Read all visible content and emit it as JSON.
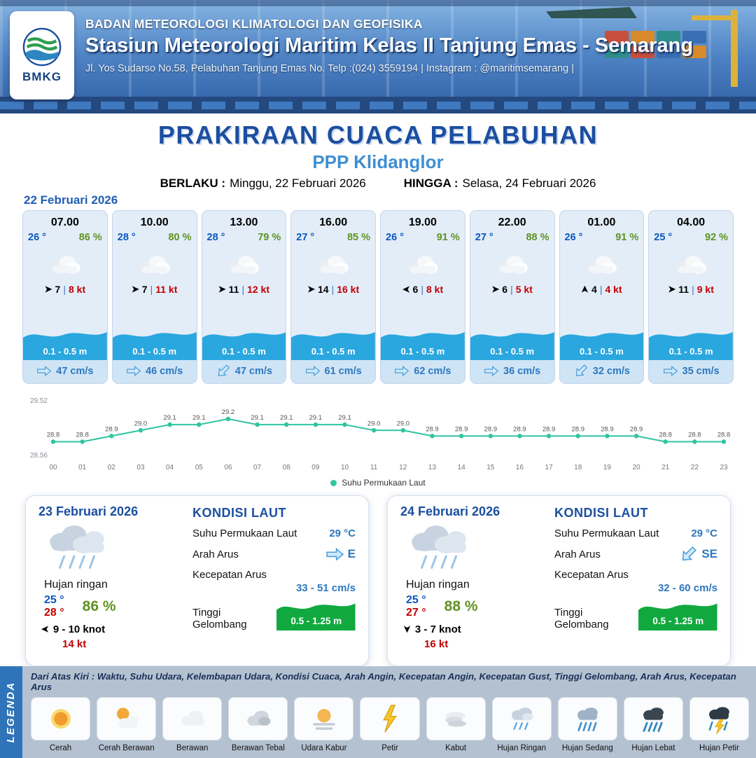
{
  "header": {
    "logo_text": "BMKG",
    "org": "BADAN METEOROLOGI KLIMATOLOGI DAN GEOFISIKA",
    "station": "Stasiun Meteorologi Maritim Kelas II Tanjung Emas - Semarang",
    "address": "Jl. Yos Sudarso No.58, Pelabuhan Tanjung Emas No. Telp :(024) 3559194 | Instagram : @maritimsemarang |"
  },
  "title": {
    "main": "PRAKIRAAN CUACA PELABUHAN",
    "subtitle": "PPP Klidanglor",
    "berlaku_label": "BERLAKU :",
    "berlaku_value": "Minggu, 22 Februari 2026",
    "hingga_label": "HINGGA :",
    "hingga_value": "Selasa, 24 Februari 2026"
  },
  "forecast": {
    "date": "22 Februari 2026",
    "cards": [
      {
        "time": "07.00",
        "temp": "26 °",
        "humidity": "86 %",
        "icon": "cloudy",
        "wind": "7",
        "gust": "8 kt",
        "wind_dir": 0,
        "wave": "0.1 - 0.5 m",
        "current": "47 cm/s",
        "current_dir": 0
      },
      {
        "time": "10.00",
        "temp": "28 °",
        "humidity": "80 %",
        "icon": "cloudy",
        "wind": "7",
        "gust": "11 kt",
        "wind_dir": 0,
        "wave": "0.1 - 0.5 m",
        "current": "46 cm/s",
        "current_dir": 0
      },
      {
        "time": "13.00",
        "temp": "28 °",
        "humidity": "79 %",
        "icon": "cloudy",
        "wind": "11",
        "gust": "12 kt",
        "wind_dir": 0,
        "wave": "0.1 - 0.5 m",
        "current": "47 cm/s",
        "current_dir": 135
      },
      {
        "time": "16.00",
        "temp": "27 °",
        "humidity": "85 %",
        "icon": "cloudy",
        "wind": "14",
        "gust": "16 kt",
        "wind_dir": 0,
        "wave": "0.1 - 0.5 m",
        "current": "61 cm/s",
        "current_dir": 0
      },
      {
        "time": "19.00",
        "temp": "26 °",
        "humidity": "91 %",
        "icon": "cloudy",
        "wind": "6",
        "gust": "8 kt",
        "wind_dir": 180,
        "wave": "0.1 - 0.5 m",
        "current": "62 cm/s",
        "current_dir": 0
      },
      {
        "time": "22.00",
        "temp": "27 °",
        "humidity": "88 %",
        "icon": "cloudy",
        "wind": "6",
        "gust": "5 kt",
        "wind_dir": 0,
        "wave": "0.1 - 0.5 m",
        "current": "36 cm/s",
        "current_dir": 0
      },
      {
        "time": "01.00",
        "temp": "26 °",
        "humidity": "91 %",
        "icon": "cloudy",
        "wind": "4",
        "gust": "4 kt",
        "wind_dir": -90,
        "wave": "0.1 - 0.5 m",
        "current": "32 cm/s",
        "current_dir": 135
      },
      {
        "time": "04.00",
        "temp": "25 °",
        "humidity": "92 %",
        "icon": "cloudy",
        "wind": "11",
        "gust": "9 kt",
        "wind_dir": 0,
        "wave": "0.1 - 0.5 m",
        "current": "35 cm/s",
        "current_dir": 0
      }
    ]
  },
  "chart_data": {
    "type": "line",
    "title": "",
    "series_name": "Suhu Permukaan Laut",
    "x": [
      "00",
      "01",
      "02",
      "03",
      "04",
      "05",
      "06",
      "07",
      "08",
      "09",
      "10",
      "11",
      "12",
      "13",
      "14",
      "15",
      "16",
      "17",
      "18",
      "19",
      "20",
      "21",
      "22",
      "23"
    ],
    "values": [
      28.8,
      28.8,
      28.9,
      29.0,
      29.1,
      29.1,
      29.2,
      29.1,
      29.1,
      29.1,
      29.1,
      29.0,
      29.0,
      28.9,
      28.9,
      28.9,
      28.9,
      28.9,
      28.9,
      28.9,
      28.9,
      28.8,
      28.8,
      28.8
    ],
    "ylim": [
      28.56,
      29.52
    ],
    "line_color": "#2fc5a0",
    "legend_position": "bottom",
    "grid": false
  },
  "daily": [
    {
      "date": "23 Februari 2026",
      "condition": "Hujan ringan",
      "icon": "light-rain",
      "temp_min": "25 °",
      "temp_max": "28 °",
      "humidity": "86 %",
      "wind": "9  - 10 knot",
      "gust": "14 kt",
      "wind_dir": 180,
      "sea": {
        "title": "KONDISI LAUT",
        "sst_label": "Suhu Permukaan Laut",
        "sst": "29 °C",
        "arus_label": "Arah Arus",
        "arus_dir": "E",
        "arus_rot": 0,
        "kec_label": "Kecepatan Arus",
        "kec": "33 - 51 cm/s",
        "gel_label": "Tinggi Gelombang",
        "gel": "0.5 - 1.25 m"
      }
    },
    {
      "date": "24 Februari 2026",
      "condition": "Hujan ringan",
      "icon": "light-rain",
      "temp_min": "25 °",
      "temp_max": "27 °",
      "humidity": "88 %",
      "wind": "3  - 7 knot",
      "gust": "16 kt",
      "wind_dir": 90,
      "sea": {
        "title": "KONDISI LAUT",
        "sst_label": "Suhu Permukaan Laut",
        "sst": "29 °C",
        "arus_label": "Arah Arus",
        "arus_dir": "SE",
        "arus_rot": 135,
        "kec_label": "Kecepatan Arus",
        "kec": "32 - 60 cm/s",
        "gel_label": "Tinggi Gelombang",
        "gel": "0.5 - 1.25 m"
      }
    }
  ],
  "legend": {
    "title": "LEGENDA",
    "description": "Dari Atas Kiri : Waktu, Suhu Udara, Kelembapan Udara, Kondisi Cuaca, Arah Angin, Kecepatan Angin, Kecepatan Gust, Tinggi Gelombang, Arah Arus, Kecepatan Arus",
    "items": [
      {
        "label": "Cerah"
      },
      {
        "label": "Cerah Berawan"
      },
      {
        "label": "Berawan"
      },
      {
        "label": "Berawan Tebal"
      },
      {
        "label": "Udara Kabur"
      },
      {
        "label": "Petir"
      },
      {
        "label": "Kabut"
      },
      {
        "label": "Hujan Ringan"
      },
      {
        "label": "Hujan Sedang"
      },
      {
        "label": "Hujan Lebat"
      },
      {
        "label": "Hujan Petir"
      }
    ]
  }
}
